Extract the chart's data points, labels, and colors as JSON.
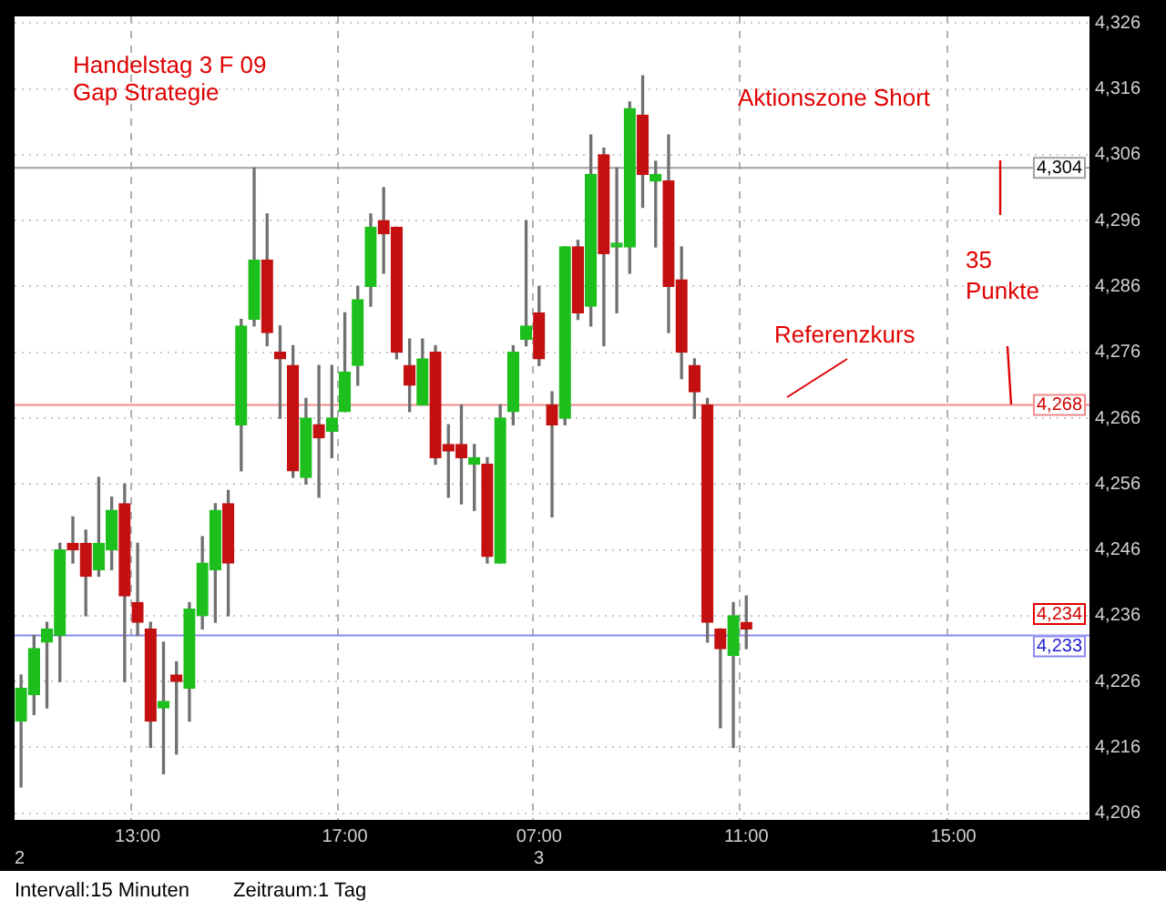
{
  "chart_data": {
    "type": "candlestick",
    "categories": [
      null,
      null,
      null,
      null,
      null,
      null,
      null,
      null,
      null,
      "13:00",
      null,
      null,
      null,
      null,
      null,
      null,
      null,
      null,
      null,
      null,
      null,
      null,
      null,
      null,
      null,
      "17:00",
      null,
      null,
      null,
      null,
      null,
      null,
      null,
      null,
      null,
      null,
      null,
      null,
      null,
      null,
      "07:00",
      null,
      null,
      null,
      null,
      null,
      null,
      null,
      null,
      null,
      null,
      null,
      null,
      null,
      null,
      null,
      "11:00",
      null,
      null,
      null,
      null,
      null,
      null,
      null,
      null,
      null,
      null,
      null,
      null,
      null,
      null,
      null,
      "15:00",
      null,
      null,
      null,
      null,
      null,
      null,
      null,
      null,
      null,
      null
    ],
    "ohlc": [
      [
        4220,
        4227,
        4210,
        4225
      ],
      [
        4224,
        4233,
        4221,
        4231
      ],
      [
        4232,
        4235,
        4222,
        4234
      ],
      [
        4233,
        4247,
        4226,
        4246
      ],
      [
        4247,
        4251,
        4244,
        4246
      ],
      [
        4247,
        4249,
        4236,
        4242
      ],
      [
        4243,
        4257,
        4242,
        4247
      ],
      [
        4246,
        4254,
        4243,
        4252
      ],
      [
        4253,
        4256,
        4226,
        4239
      ],
      [
        4238,
        4247,
        4233,
        4235
      ],
      [
        4234,
        4235,
        4216,
        4220
      ],
      [
        4222,
        4232,
        4212,
        4223
      ],
      [
        4227,
        4229,
        4215,
        4226
      ],
      [
        4225,
        4238,
        4220,
        4237
      ],
      [
        4236,
        4248,
        4234,
        4244
      ],
      [
        4243,
        4253,
        4235,
        4252
      ],
      [
        4253,
        4255,
        4236,
        4244
      ],
      [
        4265,
        4281,
        4258,
        4280
      ],
      [
        4281,
        4304,
        4280,
        4290
      ],
      [
        4290,
        4297,
        4277,
        4279
      ],
      [
        4276,
        4280,
        4266,
        4275
      ],
      [
        4274,
        4277,
        4257,
        4258
      ],
      [
        4257,
        4269,
        4256,
        4266
      ],
      [
        4265,
        4274,
        4254,
        4263
      ],
      [
        4264,
        4274,
        4260,
        4266
      ],
      [
        4267,
        4282,
        4267,
        4273
      ],
      [
        4274,
        4286,
        4271,
        4284
      ],
      [
        4286,
        4297,
        4283,
        4295
      ],
      [
        4296,
        4301,
        4288,
        4294
      ],
      [
        4295,
        4295,
        4275,
        4276
      ],
      [
        4274,
        4278,
        4267,
        4271
      ],
      [
        4268,
        4278,
        4268,
        4275
      ],
      [
        4276,
        4277,
        4259,
        4260
      ],
      [
        4262,
        4265,
        4254,
        4261
      ],
      [
        4262,
        4268,
        4253,
        4260
      ],
      [
        4259,
        4262,
        4252,
        4260
      ],
      [
        4259,
        4260,
        4244,
        4245
      ],
      [
        4244,
        4268,
        4244,
        4266
      ],
      [
        4267,
        4277,
        4265,
        4276
      ],
      [
        4278,
        4296,
        4277,
        4280
      ],
      [
        4282,
        4286,
        4274,
        4275
      ],
      [
        4268,
        4270,
        4251,
        4265
      ],
      [
        4266,
        4292,
        4265,
        4292
      ],
      [
        4292,
        4293,
        4281,
        4282
      ],
      [
        4283,
        4309,
        4280,
        4303
      ],
      [
        4306,
        4307,
        4277,
        4291
      ],
      [
        4292,
        4304,
        4282,
        4292
      ],
      [
        4292,
        4314,
        4288,
        4313
      ],
      [
        4312,
        4318,
        4298,
        4303
      ],
      [
        4302,
        4305,
        4292,
        4303
      ],
      [
        4302,
        4309,
        4279,
        4286
      ],
      [
        4287,
        4292,
        4272,
        4276
      ],
      [
        4274,
        4275,
        4266,
        4270
      ],
      [
        4268,
        4269,
        4232,
        4235
      ],
      [
        4234,
        4234,
        4219,
        4231
      ],
      [
        4230,
        4238,
        4216,
        4236
      ],
      [
        4235,
        4239,
        4231,
        4234
      ],
      null,
      null,
      null,
      null,
      null,
      null,
      null,
      null,
      null,
      null,
      null,
      null,
      null,
      null,
      null,
      null,
      null,
      null,
      null,
      null,
      null,
      null,
      null,
      null,
      null,
      null
    ],
    "colors": [
      "#1cbf1c",
      "#1cbf1c",
      "#1cbf1c",
      "#1cbf1c",
      "#c41010",
      "#c41010",
      "#1cbf1c",
      "#1cbf1c",
      "#c41010",
      "#c41010",
      "#c41010",
      "#1cbf1c",
      "#c41010",
      "#1cbf1c",
      "#1cbf1c",
      "#1cbf1c",
      "#c41010",
      "#1cbf1c",
      "#1cbf1c",
      "#c41010",
      "#c41010",
      "#c41010",
      "#1cbf1c",
      "#c41010",
      "#1cbf1c",
      "#1cbf1c",
      "#1cbf1c",
      "#1cbf1c",
      "#c41010",
      "#c41010",
      "#c41010",
      "#1cbf1c",
      "#c41010",
      "#c41010",
      "#c41010",
      "#1cbf1c",
      "#c41010",
      "#1cbf1c",
      "#1cbf1c",
      "#1cbf1c",
      "#c41010",
      "#c41010",
      "#1cbf1c",
      "#c41010",
      "#1cbf1c",
      "#c41010",
      "#1cbf1c",
      "#1cbf1c",
      "#c41010",
      "#1cbf1c",
      "#c41010",
      "#c41010",
      "#c41010",
      "#c41010",
      "#c41010",
      "#1cbf1c",
      "#c41010",
      null,
      null,
      null,
      null,
      null,
      null,
      null,
      null,
      null,
      null,
      null,
      null,
      null,
      null,
      null,
      null,
      null,
      null,
      null,
      null,
      null,
      null,
      null,
      null,
      null,
      null
    ],
    "ylim": [
      4205,
      4327
    ],
    "yticks": [
      {
        "value": 4326,
        "label": "4,326"
      },
      {
        "value": 4316,
        "label": "4,316"
      },
      {
        "value": 4306,
        "label": "4,306"
      },
      {
        "value": 4296,
        "label": "4,296"
      },
      {
        "value": 4286,
        "label": "4,286"
      },
      {
        "value": 4276,
        "label": "4,276"
      },
      {
        "value": 4266,
        "label": "4,266"
      },
      {
        "value": 4256,
        "label": "4,256"
      },
      {
        "value": 4246,
        "label": "4,246"
      },
      {
        "value": 4236,
        "label": "4,236"
      },
      {
        "value": 4226,
        "label": "4,226"
      },
      {
        "value": 4216,
        "label": "4,216"
      },
      {
        "value": 4206,
        "label": "4,206"
      }
    ],
    "ref_lines": [
      {
        "axis": "y",
        "value": 4304,
        "label": "4,304",
        "color": "#a0a0a0"
      },
      {
        "axis": "y",
        "value": 4268,
        "label": "4,268",
        "color": "#f08a8a"
      },
      {
        "axis": "y",
        "value": 4233,
        "label": "4,233",
        "color": "#8a8af0"
      }
    ],
    "annotations": [
      "Handelstag 3 F 09",
      "Gap Strategie",
      "Aktionszone Short",
      "Referenzkurs",
      "35 Punkte",
      "2",
      "3",
      "4,234",
      "Intervall:15 Minuten",
      "Zeitraum:1 Tag"
    ],
    "grid": true,
    "legend": false
  }
}
